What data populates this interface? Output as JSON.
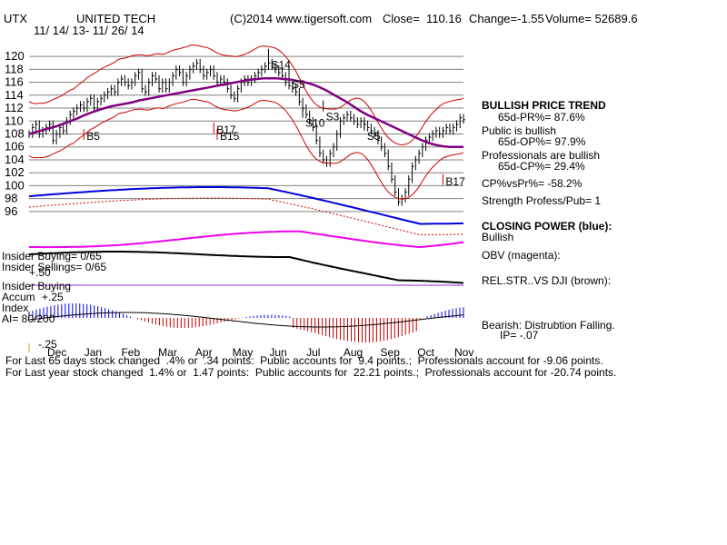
{
  "header": {
    "ticker": "UTX",
    "name": "UNITED TECH",
    "copyright": "(C)2014 www.tigersoft.com",
    "close": "Close=  110.16",
    "change": "Change=-1.55",
    "volume": "Volume= 52689.6",
    "dates": "11/ 14/ 13- 11/ 26/ 14"
  },
  "panel_labels": {
    "insider_buying_ratio": "Insider Buying= 0/65",
    "insider_selling_ratio": "Insider Sellings= 0/65",
    "plus50": "+.50",
    "insider_buying": "Insider Buying",
    "accum": "Accum",
    "accum_plus25": "+.25",
    "index": "Index",
    "ai": "AI= 80/200",
    "minus25": "-.25"
  },
  "side_panel": {
    "bullish_trend": "BULLISH PRICE TREND",
    "pr": "65d-PR%= 87.6%",
    "public": "Public is bullish",
    "op": "65d-OP%= 97.9%",
    "professionals": "Professionals are bullish",
    "cp": "65d-CP%= 29.4%",
    "cpvspr": "CP%vsPr%= -58.2%",
    "strength": "Strength Profess/Pub= 1",
    "closing_power": "CLOSING POWER (blue):",
    "closing_status": "Bullish",
    "obv": "OBV (magenta):",
    "relstr": "REL.STR..VS DJI (brown):",
    "bearish": "Bearish: Distrubtion Falling.",
    "ip": "IP= -.07"
  },
  "footer": {
    "line1": "For Last 65 days stock changed  .4% or  .34 points:  Public accounts for  9.4 points.;  Professionals account for -9.06 points.",
    "line2": "For Last year stock changed  1.4% or  1.47 points:  Public accounts for  22.21 points.;  Professionals account for -20.74 points."
  },
  "chart_data": {
    "type": "line",
    "y_ticks": [
      120,
      118,
      116,
      114,
      112,
      110,
      108,
      106,
      104,
      102,
      100,
      98,
      96
    ],
    "ylim": [
      95,
      121
    ],
    "month_labels": [
      "Dec",
      "Jan",
      "Feb",
      "Mar",
      "Apr",
      "May",
      "Jun",
      "Jul",
      "Aug",
      "Sep",
      "Oct",
      "Nov"
    ],
    "signals": [
      {
        "label": "S14",
        "value": 119.5,
        "dir": "down"
      },
      {
        "label": "S5",
        "value": 116.5,
        "dir": "down"
      },
      {
        "label": "S3",
        "value": 111.5,
        "dir": "down"
      },
      {
        "label": "B5",
        "value": 108.5,
        "dir": "up"
      },
      {
        "label": "B17",
        "value": 109.5,
        "dir": "up"
      },
      {
        "label": "B15",
        "value": 108.5,
        "dir": "up"
      },
      {
        "label": "S10",
        "value": 110.5,
        "dir": "down"
      },
      {
        "label": "S5",
        "value": 108.5,
        "dir": "down"
      },
      {
        "label": "B17",
        "value": 101.5,
        "dir": "up"
      }
    ],
    "price": {
      "name": "",
      "values": [
        108,
        109,
        109.5,
        108,
        108.5,
        109,
        109.5,
        107,
        108,
        109,
        108.5,
        110,
        111,
        111.5,
        112,
        112.5,
        112,
        113,
        113.5,
        112,
        113,
        113.5,
        114,
        114.5,
        115,
        114.5,
        116,
        116.5,
        116,
        115.5,
        116,
        117,
        117.5,
        115,
        114.5,
        116,
        117,
        116.5,
        115,
        116,
        115,
        116,
        117,
        118,
        117.5,
        116,
        117,
        118,
        118.5,
        119,
        118,
        117,
        117.5,
        118,
        117,
        116,
        116.5,
        116,
        115,
        114,
        113.5,
        115,
        116,
        116.5,
        116,
        116.5,
        117,
        117.5,
        118,
        118.5,
        119,
        118.5,
        118,
        117.5,
        117,
        116,
        115.5,
        115,
        114.5,
        113,
        112,
        111,
        110,
        109,
        107,
        105,
        104,
        103.5,
        105,
        106,
        108,
        110,
        110.5,
        111,
        110.5,
        110,
        109.5,
        110,
        109.5,
        109,
        108.5,
        108,
        107,
        106,
        105,
        103,
        101,
        99,
        97.5,
        98,
        99,
        101,
        103,
        104,
        105,
        106,
        107,
        107.5,
        108,
        108.5,
        108,
        108.5,
        109,
        108.5,
        109,
        109.5,
        110.5,
        110.2
      ]
    },
    "ma": {
      "name": "",
      "values": [
        108,
        108.3,
        108.6,
        108.9,
        109.2,
        109.6,
        110,
        110.4,
        110.9,
        111.3,
        111.7,
        112,
        112.3,
        112.5,
        112.7,
        112.9,
        113.2,
        113.4,
        113.6,
        113.8,
        114,
        114.2,
        114.4,
        114.6,
        114.8,
        115,
        115.2,
        115.4,
        115.6,
        115.8,
        116,
        116.2,
        116.4,
        116.5,
        116.6,
        116.6,
        116.6,
        116.5,
        116.4,
        116.2,
        116,
        115.7,
        115.3,
        114.8,
        114.2,
        113.6,
        113,
        112.3,
        111.6,
        111,
        110.5,
        110,
        109.5,
        109,
        108.5,
        108,
        107.5,
        107,
        106.6,
        106.3,
        106.1,
        106,
        106,
        106
      ]
    }
  }
}
